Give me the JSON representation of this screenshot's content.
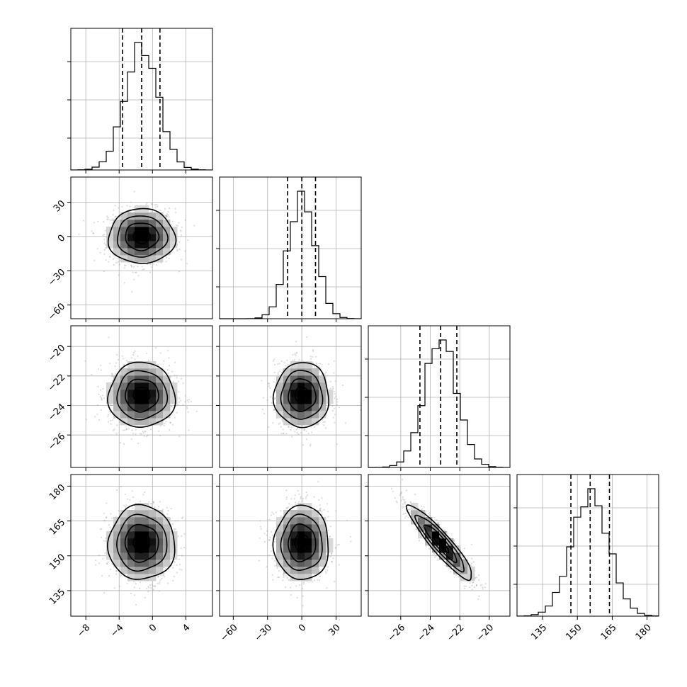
{
  "chart_data": {
    "type": "corner",
    "parameters": [
      {
        "key": "p1",
        "ticks": [
          -8,
          -4,
          0,
          4
        ],
        "range": [
          -9.8,
          7.2
        ],
        "mean": -1.3,
        "sd": 2.0,
        "quantiles": [
          -3.6,
          -1.3,
          0.9
        ]
      },
      {
        "key": "p2",
        "ticks": [
          -60,
          -30,
          0,
          30
        ],
        "range": [
          -72,
          52
        ],
        "mean": 0.0,
        "sd": 12.0,
        "quantiles": [
          -12.5,
          0.0,
          12.0
        ]
      },
      {
        "key": "p3",
        "ticks": [
          -26,
          -24,
          -22,
          -20
        ],
        "range": [
          -28.2,
          -18.6
        ],
        "mean": -23.3,
        "sd": 1.1,
        "quantiles": [
          -24.7,
          -23.3,
          -22.2
        ]
      },
      {
        "key": "p4",
        "ticks": [
          135,
          150,
          165,
          180
        ],
        "range": [
          124,
          185
        ],
        "mean": 155.5,
        "sd": 8.0,
        "quantiles": [
          147.2,
          155.5,
          163.8
        ]
      }
    ],
    "correlations": [
      {
        "pair": [
          0,
          1
        ],
        "rho": 0.0
      },
      {
        "pair": [
          0,
          2
        ],
        "rho": 0.0
      },
      {
        "pair": [
          1,
          2
        ],
        "rho": 0.0
      },
      {
        "pair": [
          0,
          3
        ],
        "rho": 0.0
      },
      {
        "pair": [
          1,
          3
        ],
        "rho": 0.0
      },
      {
        "pair": [
          2,
          3
        ],
        "rho": -0.92
      }
    ],
    "bins": 20,
    "contour_levels_sigma": [
      0.5,
      1.0,
      1.5,
      2.0
    ],
    "grid": true
  }
}
